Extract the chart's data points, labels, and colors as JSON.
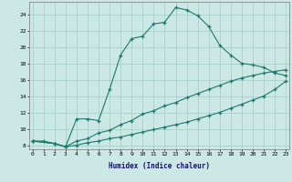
{
  "xlabel": "Humidex (Indice chaleur)",
  "bg_color": "#cce8e4",
  "grid_color": "#aacfc9",
  "line_color": "#1a7a6e",
  "xlim": [
    -0.3,
    23.3
  ],
  "ylim": [
    7.5,
    25.5
  ],
  "xticks": [
    0,
    1,
    2,
    3,
    4,
    5,
    6,
    7,
    8,
    9,
    10,
    11,
    12,
    13,
    14,
    15,
    16,
    17,
    18,
    19,
    20,
    21,
    22,
    23
  ],
  "yticks": [
    8,
    10,
    12,
    14,
    16,
    18,
    20,
    22,
    24
  ],
  "series1_x": [
    0,
    1,
    2,
    3,
    4,
    5,
    6,
    7,
    8,
    9,
    10,
    11,
    12,
    13,
    14,
    15,
    16,
    17,
    18,
    19,
    20,
    21,
    22,
    23
  ],
  "series1_y": [
    8.5,
    8.5,
    8.2,
    7.8,
    11.2,
    11.2,
    11.0,
    14.8,
    19.0,
    21.0,
    21.3,
    22.8,
    23.0,
    24.8,
    24.5,
    23.8,
    22.5,
    20.2,
    19.0,
    18.0,
    17.8,
    17.5,
    16.8,
    16.5
  ],
  "series2_x": [
    0,
    2,
    3,
    4,
    5,
    6,
    7,
    8,
    9,
    10,
    11,
    12,
    13,
    14,
    15,
    16,
    17,
    18,
    19,
    20,
    21,
    22,
    23
  ],
  "series2_y": [
    8.5,
    8.2,
    7.8,
    8.5,
    8.8,
    9.5,
    9.8,
    10.5,
    11.0,
    11.8,
    12.2,
    12.8,
    13.2,
    13.8,
    14.3,
    14.8,
    15.3,
    15.8,
    16.2,
    16.5,
    16.8,
    17.0,
    17.2
  ],
  "series3_x": [
    0,
    2,
    3,
    4,
    5,
    6,
    7,
    8,
    9,
    10,
    11,
    12,
    13,
    14,
    15,
    16,
    17,
    18,
    19,
    20,
    21,
    22,
    23
  ],
  "series3_y": [
    8.5,
    8.2,
    7.8,
    8.0,
    8.3,
    8.5,
    8.8,
    9.0,
    9.3,
    9.6,
    9.9,
    10.2,
    10.5,
    10.8,
    11.2,
    11.6,
    12.0,
    12.5,
    13.0,
    13.5,
    14.0,
    14.8,
    15.8
  ]
}
